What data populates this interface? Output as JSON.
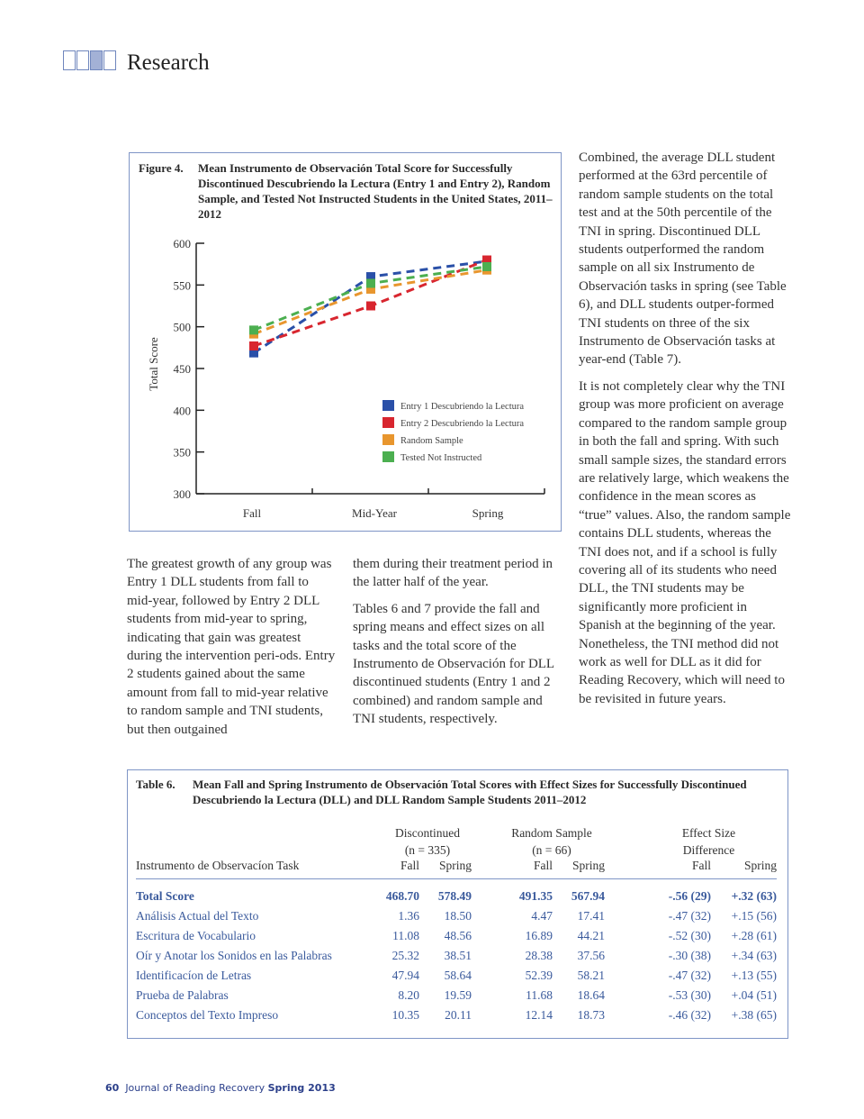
{
  "header": {
    "section": "Research"
  },
  "figure": {
    "label": "Figure 4.",
    "title": "Mean Instrumento de Observación Total Score for Successfully Discontinued Descubriendo la Lectura (Entry 1 and Entry 2), Random Sample, and Tested Not Instructed Students in the United States, 2011–2012"
  },
  "chart_data": {
    "type": "line",
    "title": "Mean Instrumento de Observación Total Score",
    "xlabel": "",
    "ylabel": "Total Score",
    "categories": [
      "Fall",
      "Mid-Year",
      "Spring"
    ],
    "ylim": [
      300,
      600
    ],
    "yticks": [
      300,
      350,
      400,
      450,
      500,
      550,
      600
    ],
    "grid": false,
    "legend_position": "bottom-right",
    "series": [
      {
        "name": "Entry 1 Descubriendo la Lectura",
        "color": "#2a50a8",
        "values": [
          468.7,
          560,
          578.49
        ]
      },
      {
        "name": "Entry 2 Descubriendo la Lectura",
        "color": "#d8262f",
        "values": [
          477,
          525,
          580
        ]
      },
      {
        "name": "Random Sample",
        "color": "#e8962e",
        "values": [
          491.35,
          545,
          567.94
        ]
      },
      {
        "name": "Tested  Not Instructed",
        "color": "#4caf50",
        "values": [
          496,
          552,
          572
        ]
      }
    ]
  },
  "columns": {
    "col1": [
      "The greatest growth of any group was Entry 1 DLL students from fall to mid-year, followed by Entry 2 DLL students from mid-year to spring, indicating that gain was greatest during the intervention peri-ods. Entry 2 students gained about the same amount from fall to mid-year relative to random sample and TNI students, but then outgained"
    ],
    "col2": [
      "them during their treatment period in the latter half of the year.",
      "Tables 6 and 7 provide the fall and spring means and effect sizes on all tasks and the total score of the Instrumento de Observación for DLL discontinued students (Entry 1 and 2 combined) and random sample and TNI students, respectively."
    ],
    "col3": [
      "Combined, the average DLL student performed at the 63rd percentile of random sample students on the total test and at the 50th percentile of the TNI in spring. Discontinued DLL students outperformed the random sample on all six Instrumento de Observación tasks in spring (see Table 6), and DLL students outper-formed TNI students on three of the six Instrumento de Observación tasks at year-end (Table 7).",
      "It is not completely clear why the TNI group was more proficient on average compared to the random sample group in both the fall and spring. With such small sample sizes, the standard errors are relatively large, which weakens the confidence in the mean scores as “true” values. Also, the random sample contains DLL students, whereas the TNI does not, and if a school is fully covering all of its students who need DLL, the TNI students may be significantly more proficient in Spanish at the beginning of the year. Nonetheless, the TNI method did not work as well for DLL as it did for Reading Recovery, which will need to be revisited in future years."
    ]
  },
  "table": {
    "label": "Table 6.",
    "title": "Mean Fall and Spring Instrumento de Observación Total Scores with Effect Sizes for Successfully Discontinued Descubriendo la Lectura (DLL) and DLL Random Sample Students 2011–2012",
    "groups": [
      {
        "name": "Discontinued",
        "n": "(n = 335)"
      },
      {
        "name": "Random Sample",
        "n": "(n = 66)"
      },
      {
        "name": "Effect Size",
        "n": "Difference"
      }
    ],
    "task_header": "Instrumento de Observacíon Task",
    "sub": [
      "Fall",
      "Spring",
      "Fall",
      "Spring",
      "Fall",
      "Spring"
    ],
    "rows": [
      [
        "Total Score",
        "468.70",
        "578.49",
        "491.35",
        "567.94",
        "-.56 (29)",
        "+.32 (63)"
      ],
      [
        "Análisis Actual del Texto",
        "1.36",
        "18.50",
        "4.47",
        "17.41",
        "-.47 (32)",
        "+.15 (56)"
      ],
      [
        "Escritura de Vocabulario",
        "11.08",
        "48.56",
        "16.89",
        "44.21",
        "-.52 (30)",
        "+.28 (61)"
      ],
      [
        "Oír y Anotar los Sonidos en las Palabras",
        "25.32",
        "38.51",
        "28.38",
        "37.56",
        "-.30 (38)",
        "+.34 (63)"
      ],
      [
        "Identificacíon de Letras",
        "47.94",
        "58.64",
        "52.39",
        "58.21",
        "-.47 (32)",
        "+.13 (55)"
      ],
      [
        "Prueba de Palabras",
        "8.20",
        "19.59",
        "11.68",
        "18.64",
        "-.53 (30)",
        "+.04 (51)"
      ],
      [
        "Conceptos del Texto Impreso",
        "10.35",
        "20.11",
        "12.14",
        "18.73",
        "-.46 (32)",
        "+.38 (65)"
      ]
    ]
  },
  "footer": {
    "page": "60",
    "journal": "Journal of Reading Recovery",
    "issue": "Spring 2013"
  }
}
